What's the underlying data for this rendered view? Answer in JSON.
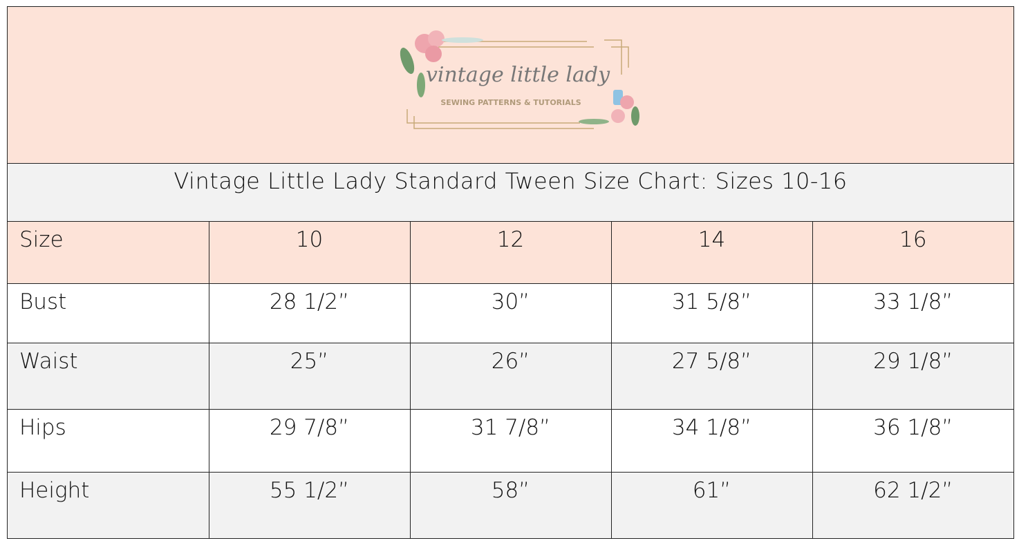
{
  "logo": {
    "script_text": "vintage little lady",
    "tagline": "SEWING PATTERNS & TUTORIALS"
  },
  "title": "Vintage Little Lady Standard Tween Size Chart: Sizes 10-16",
  "colors": {
    "header_bg": "#fde3d8",
    "alt_row_bg": "#f2f2f2",
    "border": "#222222"
  },
  "table": {
    "header": [
      "Size",
      "10",
      "12",
      "14",
      "16"
    ],
    "rows": [
      [
        "Bust",
        "28 1/2”",
        "30”",
        "31 5/8”",
        "33 1/8”"
      ],
      [
        "Waist",
        "25”",
        "26”",
        "27 5/8”",
        "29 1/8”"
      ],
      [
        "Hips",
        "29 7/8”",
        "31 7/8”",
        "34 1/8”",
        "36 1/8”"
      ],
      [
        "Height",
        "55 1/2”",
        "58”",
        "61”",
        "62 1/2”"
      ]
    ]
  }
}
